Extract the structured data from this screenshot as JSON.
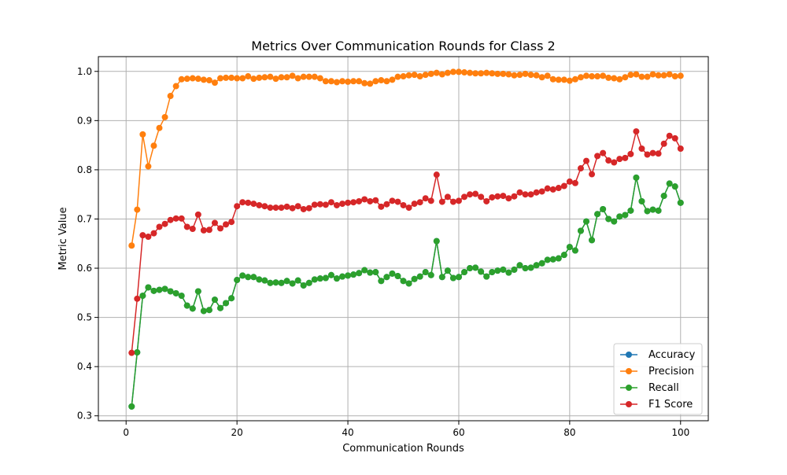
{
  "chart_data": {
    "type": "line",
    "title": "Metrics Over Communication Rounds for Class 2",
    "xlabel": "Communication Rounds",
    "ylabel": "Metric Value",
    "xlim": [
      -5,
      105
    ],
    "ylim": [
      0.29,
      1.03
    ],
    "xticks": [
      0,
      20,
      40,
      60,
      80,
      100
    ],
    "xtick_labels": [
      "0",
      "20",
      "40",
      "60",
      "80",
      "100"
    ],
    "yticks": [
      0.3,
      0.4,
      0.5,
      0.6,
      0.7,
      0.8,
      0.9,
      1.0
    ],
    "ytick_labels": [
      "0.3",
      "0.4",
      "0.5",
      "0.6",
      "0.7",
      "0.8",
      "0.9",
      "1.0"
    ],
    "grid": true,
    "legend_position": "lower-right",
    "x": [
      1,
      2,
      3,
      4,
      5,
      6,
      7,
      8,
      9,
      10,
      11,
      12,
      13,
      14,
      15,
      16,
      17,
      18,
      19,
      20,
      21,
      22,
      23,
      24,
      25,
      26,
      27,
      28,
      29,
      30,
      31,
      32,
      33,
      34,
      35,
      36,
      37,
      38,
      39,
      40,
      41,
      42,
      43,
      44,
      45,
      46,
      47,
      48,
      49,
      50,
      51,
      52,
      53,
      54,
      55,
      56,
      57,
      58,
      59,
      60,
      61,
      62,
      63,
      64,
      65,
      66,
      67,
      68,
      69,
      70,
      71,
      72,
      73,
      74,
      75,
      76,
      77,
      78,
      79,
      80,
      81,
      82,
      83,
      84,
      85,
      86,
      87,
      88,
      89,
      90,
      91,
      92,
      93,
      94,
      95,
      96,
      97,
      98,
      99,
      100
    ],
    "series": [
      {
        "name": "Accuracy",
        "color": "#1f77b4",
        "hidden_under": "Recall",
        "values": [
          0.319,
          0.429,
          0.544,
          0.561,
          0.554,
          0.556,
          0.558,
          0.553,
          0.549,
          0.544,
          0.524,
          0.518,
          0.553,
          0.513,
          0.515,
          0.536,
          0.519,
          0.529,
          0.539,
          0.576,
          0.585,
          0.582,
          0.582,
          0.577,
          0.575,
          0.57,
          0.571,
          0.57,
          0.574,
          0.569,
          0.575,
          0.565,
          0.57,
          0.577,
          0.579,
          0.58,
          0.586,
          0.579,
          0.583,
          0.585,
          0.587,
          0.59,
          0.596,
          0.591,
          0.592,
          0.574,
          0.582,
          0.589,
          0.584,
          0.574,
          0.569,
          0.578,
          0.583,
          0.592,
          0.586,
          0.655,
          0.582,
          0.595,
          0.58,
          0.582,
          0.592,
          0.6,
          0.601,
          0.593,
          0.583,
          0.592,
          0.595,
          0.597,
          0.591,
          0.597,
          0.606,
          0.6,
          0.601,
          0.606,
          0.61,
          0.617,
          0.618,
          0.62,
          0.627,
          0.643,
          0.636,
          0.676,
          0.695,
          0.657,
          0.71,
          0.72,
          0.7,
          0.695,
          0.705,
          0.708,
          0.717,
          0.784,
          0.736,
          0.716,
          0.719,
          0.717,
          0.747,
          0.772,
          0.766,
          0.733
        ]
      },
      {
        "name": "Precision",
        "color": "#ff7f0e",
        "values": [
          0.646,
          0.719,
          0.872,
          0.807,
          0.849,
          0.885,
          0.907,
          0.95,
          0.97,
          0.984,
          0.985,
          0.986,
          0.985,
          0.983,
          0.982,
          0.977,
          0.986,
          0.987,
          0.987,
          0.986,
          0.986,
          0.99,
          0.985,
          0.987,
          0.988,
          0.989,
          0.985,
          0.988,
          0.988,
          0.991,
          0.986,
          0.989,
          0.989,
          0.989,
          0.986,
          0.98,
          0.98,
          0.978,
          0.98,
          0.979,
          0.98,
          0.98,
          0.976,
          0.975,
          0.98,
          0.982,
          0.98,
          0.983,
          0.989,
          0.99,
          0.992,
          0.993,
          0.99,
          0.993,
          0.995,
          0.997,
          0.994,
          0.997,
          0.999,
          0.999,
          0.998,
          0.997,
          0.996,
          0.996,
          0.997,
          0.996,
          0.995,
          0.995,
          0.994,
          0.992,
          0.993,
          0.995,
          0.993,
          0.992,
          0.988,
          0.991,
          0.984,
          0.983,
          0.983,
          0.981,
          0.984,
          0.988,
          0.991,
          0.99,
          0.99,
          0.991,
          0.987,
          0.986,
          0.984,
          0.988,
          0.993,
          0.994,
          0.989,
          0.989,
          0.994,
          0.992,
          0.992,
          0.994,
          0.99,
          0.991
        ]
      },
      {
        "name": "Recall",
        "color": "#2ca02c",
        "values": [
          0.319,
          0.429,
          0.544,
          0.561,
          0.554,
          0.556,
          0.558,
          0.553,
          0.549,
          0.544,
          0.524,
          0.518,
          0.553,
          0.513,
          0.515,
          0.536,
          0.519,
          0.529,
          0.539,
          0.576,
          0.585,
          0.582,
          0.582,
          0.577,
          0.575,
          0.57,
          0.571,
          0.57,
          0.574,
          0.569,
          0.575,
          0.565,
          0.57,
          0.577,
          0.579,
          0.58,
          0.586,
          0.579,
          0.583,
          0.585,
          0.587,
          0.59,
          0.596,
          0.591,
          0.592,
          0.574,
          0.582,
          0.589,
          0.584,
          0.574,
          0.569,
          0.578,
          0.583,
          0.592,
          0.586,
          0.655,
          0.582,
          0.595,
          0.58,
          0.582,
          0.592,
          0.6,
          0.601,
          0.593,
          0.583,
          0.592,
          0.595,
          0.597,
          0.591,
          0.597,
          0.606,
          0.6,
          0.601,
          0.606,
          0.61,
          0.617,
          0.618,
          0.62,
          0.627,
          0.643,
          0.636,
          0.676,
          0.695,
          0.657,
          0.71,
          0.72,
          0.7,
          0.695,
          0.705,
          0.708,
          0.717,
          0.784,
          0.736,
          0.716,
          0.719,
          0.717,
          0.747,
          0.772,
          0.766,
          0.733
        ]
      },
      {
        "name": "F1 Score",
        "color": "#d62728",
        "values": [
          0.428,
          0.538,
          0.667,
          0.664,
          0.671,
          0.684,
          0.69,
          0.698,
          0.701,
          0.701,
          0.684,
          0.68,
          0.709,
          0.677,
          0.678,
          0.692,
          0.681,
          0.689,
          0.694,
          0.726,
          0.734,
          0.733,
          0.731,
          0.728,
          0.726,
          0.723,
          0.723,
          0.723,
          0.725,
          0.722,
          0.726,
          0.72,
          0.722,
          0.729,
          0.73,
          0.729,
          0.734,
          0.728,
          0.731,
          0.733,
          0.734,
          0.736,
          0.74,
          0.736,
          0.738,
          0.725,
          0.73,
          0.737,
          0.735,
          0.728,
          0.723,
          0.731,
          0.734,
          0.742,
          0.737,
          0.79,
          0.735,
          0.745,
          0.735,
          0.737,
          0.745,
          0.75,
          0.751,
          0.745,
          0.736,
          0.744,
          0.746,
          0.747,
          0.742,
          0.746,
          0.754,
          0.75,
          0.75,
          0.754,
          0.756,
          0.762,
          0.76,
          0.763,
          0.767,
          0.776,
          0.773,
          0.803,
          0.818,
          0.791,
          0.828,
          0.834,
          0.819,
          0.815,
          0.822,
          0.824,
          0.832,
          0.878,
          0.843,
          0.831,
          0.834,
          0.833,
          0.853,
          0.869,
          0.864,
          0.843
        ]
      }
    ]
  }
}
